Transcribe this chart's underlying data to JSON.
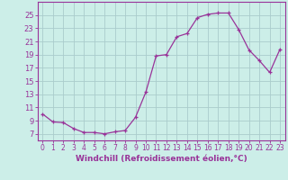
{
  "x": [
    0,
    1,
    2,
    3,
    4,
    5,
    6,
    7,
    8,
    9,
    10,
    11,
    12,
    13,
    14,
    15,
    16,
    17,
    18,
    19,
    20,
    21,
    22,
    23
  ],
  "y": [
    10.0,
    8.8,
    8.7,
    7.8,
    7.2,
    7.2,
    7.0,
    7.3,
    7.5,
    9.5,
    13.3,
    18.8,
    19.0,
    21.7,
    22.2,
    24.6,
    25.1,
    25.3,
    25.3,
    22.8,
    19.7,
    18.1,
    16.3,
    19.8
  ],
  "line_color": "#993399",
  "marker": "+",
  "marker_size": 3.5,
  "bg_color": "#cceee8",
  "grid_color": "#aacccc",
  "axis_color": "#993399",
  "xlabel": "Windchill (Refroidissement éolien,°C)",
  "xlabel_fontsize": 6.5,
  "ytick_labels": [
    "7",
    "9",
    "11",
    "13",
    "15",
    "17",
    "19",
    "21",
    "23",
    "25"
  ],
  "yticks": [
    7,
    9,
    11,
    13,
    15,
    17,
    19,
    21,
    23,
    25
  ],
  "ylim": [
    6.0,
    27.0
  ],
  "xlim": [
    -0.5,
    23.5
  ],
  "tick_fontsize": 6.0,
  "xtick_fontsize": 5.5
}
